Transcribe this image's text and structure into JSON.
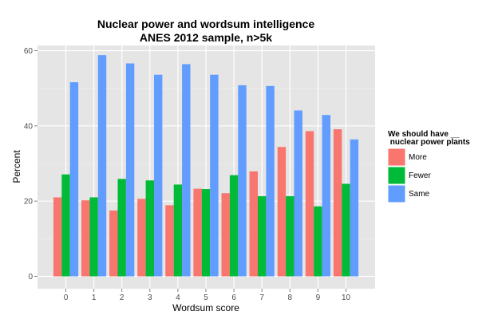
{
  "chart_data": {
    "type": "bar",
    "title_lines": [
      "Nuclear power and wordsum intelligence",
      "ANES 2012 sample, n>5k"
    ],
    "xlabel": "Wordsum score",
    "ylabel": "Percent",
    "categories": [
      "0",
      "1",
      "2",
      "3",
      "4",
      "5",
      "6",
      "7",
      "8",
      "9",
      "10"
    ],
    "ylim": [
      0,
      62
    ],
    "yticks": [
      0,
      20,
      40,
      60
    ],
    "grid": true,
    "legend": {
      "title_lines": [
        "We should have __",
        " nuclear power plants"
      ],
      "placement": "right"
    },
    "series": [
      {
        "name": "More",
        "color": "#F8766D",
        "values": [
          21.0,
          20.2,
          17.5,
          20.6,
          18.9,
          23.3,
          22.1,
          27.9,
          34.4,
          38.6,
          39.1
        ]
      },
      {
        "name": "Fewer",
        "color": "#00BA38",
        "values": [
          27.1,
          21.0,
          25.9,
          25.5,
          24.4,
          23.2,
          26.9,
          21.3,
          21.3,
          18.6,
          24.6
        ]
      },
      {
        "name": "Same",
        "color": "#619CFF",
        "values": [
          51.6,
          58.8,
          56.6,
          53.6,
          56.4,
          53.6,
          50.8,
          50.6,
          44.1,
          42.9,
          36.4
        ]
      }
    ]
  }
}
